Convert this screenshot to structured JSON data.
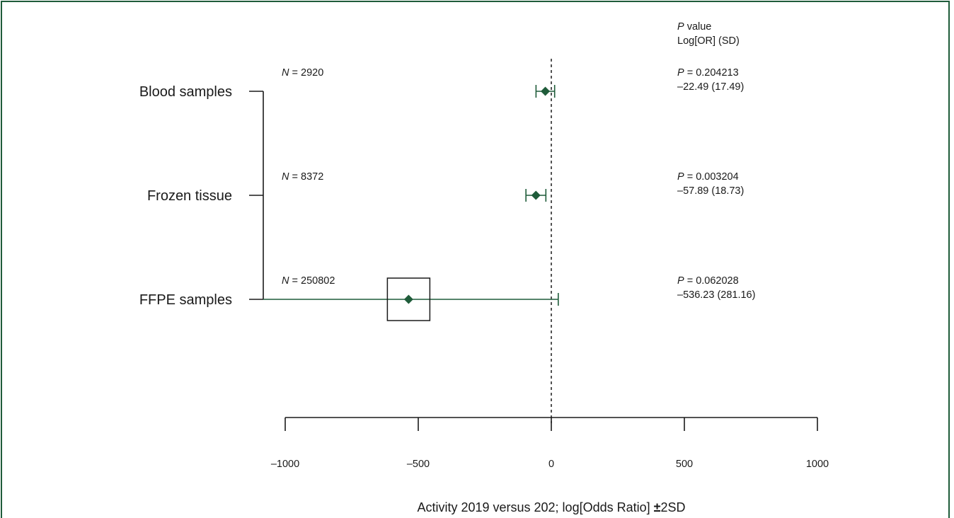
{
  "chart_data": {
    "type": "forest",
    "title": "",
    "xlabel_prefix": "Activity 2019 versus 202; log[Odds Ratio]",
    "xlabel_pm": "±",
    "xlabel_suffix": "2SD",
    "xlim": [
      -1000,
      1000
    ],
    "x_ticks": [
      -1000,
      -500,
      0,
      500,
      1000
    ],
    "x_tick_labels": [
      "–1000",
      "–500",
      "0",
      "500",
      "1000"
    ],
    "reference_line": 0,
    "header": {
      "p_italic": "P",
      "p_rest": " value",
      "estimate_label": "Log[OR] (SD)"
    },
    "marker_color": "#1f5c3a",
    "rows": [
      {
        "label": "Blood samples",
        "n_italic": "N",
        "n_text": " = 2920",
        "estimate": -22.49,
        "sd": 17.49,
        "ci": [
          -57.47,
          12.49
        ],
        "show_box": false,
        "p_italic": "P",
        "p_text": " = 0.204213",
        "est_text": "–22.49 (17.49)"
      },
      {
        "label": "Frozen tissue",
        "n_italic": "N",
        "n_text": " = 8372",
        "estimate": -57.89,
        "sd": 18.73,
        "ci": [
          -95.35,
          -20.43
        ],
        "show_box": false,
        "p_italic": "P",
        "p_text": " = 0.003204",
        "est_text": "–57.89 (18.73)"
      },
      {
        "label": "FFPE samples",
        "n_italic": "N",
        "n_text": " = 250802",
        "estimate": -536.23,
        "sd": 281.16,
        "ci": [
          -1098.55,
          26.09
        ],
        "show_box": true,
        "p_italic": "P",
        "p_text": " = 0.062028",
        "est_text": "–536.23 (281.16)"
      }
    ]
  }
}
